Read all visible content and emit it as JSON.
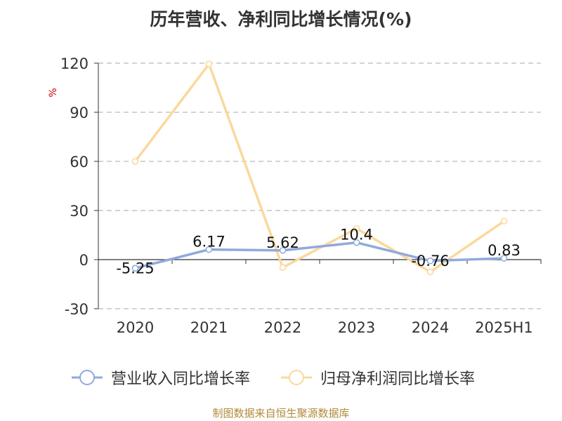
{
  "title": "历年营收、净利同比增长情况(%)",
  "y_unit": "%",
  "source": "制图数据来自恒生聚源数据库",
  "colors": {
    "series_revenue": "#8faadc",
    "series_profit": "#fbd89c",
    "unit": "#cc0000",
    "grid": "#bbbbbb",
    "axis": "#333333",
    "source": "#b08a3a"
  },
  "chart_data": {
    "type": "line",
    "title": "历年营收、净利同比增长情况(%)",
    "ylabel": "%",
    "categories": [
      "2020",
      "2021",
      "2022",
      "2023",
      "2024",
      "2025H1"
    ],
    "ylim": [
      -30,
      120
    ],
    "yticks": [
      120,
      90,
      60,
      30,
      0,
      -30
    ],
    "grid": true,
    "legend_position": "bottom",
    "series": [
      {
        "name": "营业收入同比增长率",
        "values": [
          -5.25,
          6.17,
          5.62,
          10.4,
          -0.76,
          0.83
        ],
        "labels": [
          "-5.25",
          "6.17",
          "5.62",
          "10.4",
          "-0.76",
          "0.83"
        ],
        "color": "#8faadc"
      },
      {
        "name": "归母净利润同比增长率",
        "values": [
          60,
          119.5,
          -4.8,
          19,
          -7.5,
          23.5
        ],
        "color": "#fbd89c"
      }
    ]
  }
}
